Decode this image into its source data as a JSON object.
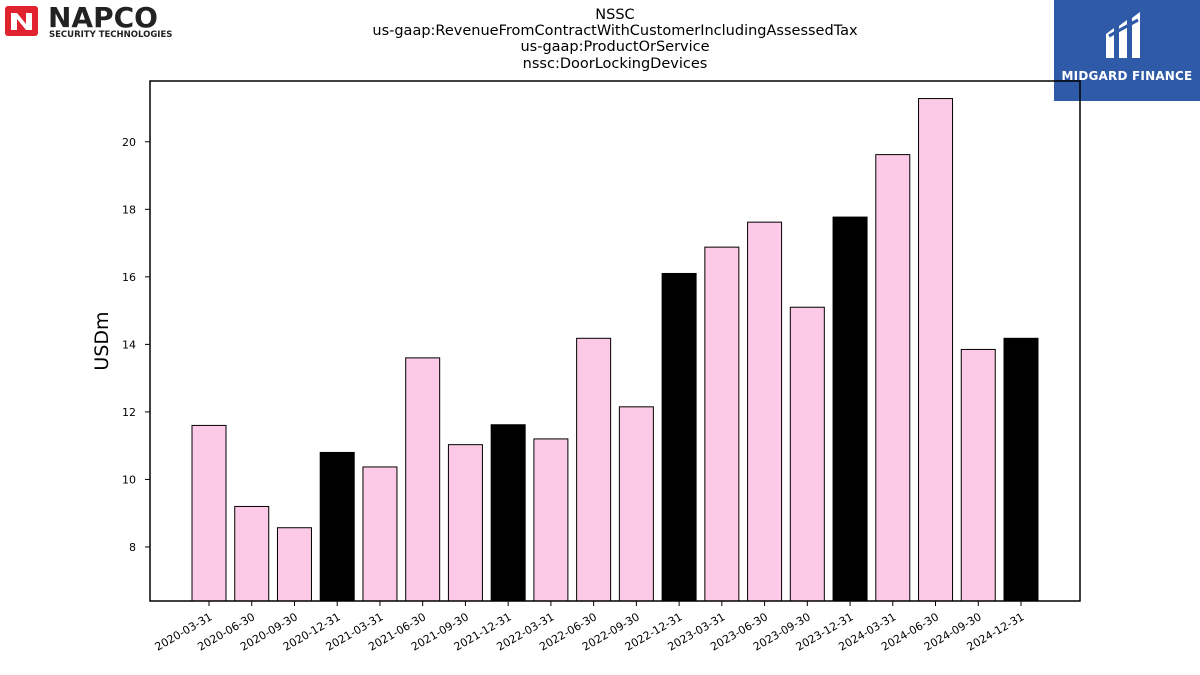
{
  "header": {
    "title_lines": [
      "NSSC",
      "us-gaap:RevenueFromContractWithCustomerIncludingAssessedTax",
      "us-gaap:ProductOrService",
      "nssc:DoorLockingDevices"
    ]
  },
  "logos": {
    "left": {
      "name": "NAPCO",
      "tagline": "SECURITY TECHNOLOGIES",
      "color": "#e0232e"
    },
    "right": {
      "name": "MIDGARD FINANCE",
      "color": "#2f5aa8"
    }
  },
  "chart_data": {
    "type": "bar",
    "categories": [
      "2020-03-31",
      "2020-06-30",
      "2020-09-30",
      "2020-12-31",
      "2021-03-31",
      "2021-06-30",
      "2021-09-30",
      "2021-12-31",
      "2022-03-31",
      "2022-06-30",
      "2022-09-30",
      "2022-12-31",
      "2023-03-31",
      "2023-06-30",
      "2023-09-30",
      "2023-12-31",
      "2024-03-31",
      "2024-06-30",
      "2024-09-30",
      "2024-12-31"
    ],
    "values": [
      11.6,
      9.2,
      8.57,
      10.8,
      10.37,
      13.6,
      11.03,
      11.62,
      11.2,
      14.18,
      12.15,
      16.1,
      16.88,
      17.62,
      15.1,
      17.77,
      19.62,
      21.28,
      13.85,
      14.18
    ],
    "highlight": [
      false,
      false,
      false,
      true,
      false,
      false,
      false,
      true,
      false,
      false,
      false,
      true,
      false,
      false,
      false,
      true,
      false,
      false,
      false,
      true
    ],
    "colors": {
      "normal": "#fccae6",
      "highlight": "#000000",
      "edge": "#000000"
    },
    "ylabel": "USDm",
    "xlabel": "",
    "ylim": [
      6.4,
      21.8
    ],
    "yticks": [
      8,
      10,
      12,
      14,
      16,
      18,
      20
    ],
    "grid": false
  }
}
